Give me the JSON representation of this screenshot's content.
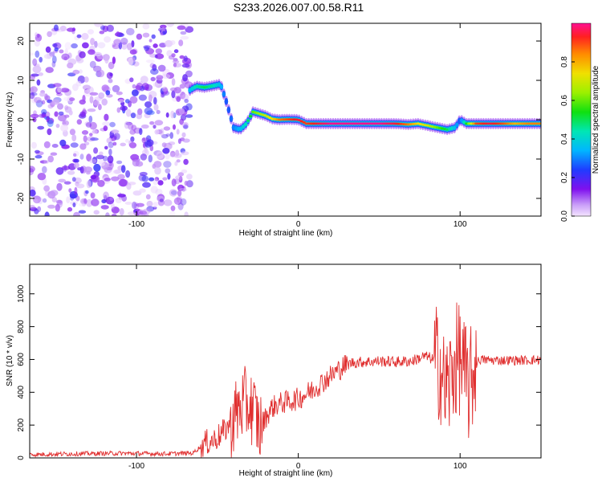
{
  "title": "S233.2026.007.00.58.R11",
  "colors": {
    "axis": "#000000",
    "trace": "#e03030",
    "background": "#ffffff"
  },
  "chart_data": [
    {
      "type": "heatmap",
      "xlabel": "Height of straight line (km)",
      "ylabel": "Frequency (Hz)",
      "xlim": [
        -166,
        150
      ],
      "ylim": [
        -24.5,
        24.5
      ],
      "xticks": [
        -100,
        0,
        100
      ],
      "yticks": [
        -20,
        -10,
        0,
        10,
        20
      ],
      "grid": false,
      "colorbar": {
        "label": "Normalized spectral amplitude",
        "range": [
          0,
          1
        ],
        "ticks": [
          "0.0",
          "0.2",
          "0.4",
          "0.6",
          "0.8"
        ]
      },
      "noise_region": {
        "x": [
          -166,
          -67
        ],
        "y": [
          -24.5,
          24.5
        ],
        "level": 0.15
      },
      "ridge": [
        {
          "x": -67,
          "y": 7.5,
          "level": 0.35
        },
        {
          "x": -63,
          "y": 8.5,
          "level": 0.45
        },
        {
          "x": -58,
          "y": 8.2,
          "level": 0.5
        },
        {
          "x": -53,
          "y": 8.6,
          "level": 0.45
        },
        {
          "x": -48,
          "y": 9.0,
          "level": 0.35
        },
        {
          "x": -44,
          "y": 4.0,
          "level": 0.25
        },
        {
          "x": -40,
          "y": -2.0,
          "level": 0.3
        },
        {
          "x": -36,
          "y": -2.5,
          "level": 0.35
        },
        {
          "x": -32,
          "y": -1.0,
          "level": 0.45
        },
        {
          "x": -28,
          "y": 2.0,
          "level": 0.6
        },
        {
          "x": -24,
          "y": 1.5,
          "level": 0.65
        },
        {
          "x": -20,
          "y": 1.0,
          "level": 0.7
        },
        {
          "x": -16,
          "y": 0.2,
          "level": 0.75
        },
        {
          "x": -12,
          "y": 0.0,
          "level": 0.85
        },
        {
          "x": -6,
          "y": 0.1,
          "level": 0.9
        },
        {
          "x": 0,
          "y": 0.0,
          "level": 0.95
        },
        {
          "x": 5,
          "y": -1.0,
          "level": 0.9
        },
        {
          "x": 12,
          "y": -1.0,
          "level": 0.95
        },
        {
          "x": 20,
          "y": -1.0,
          "level": 1.0
        },
        {
          "x": 30,
          "y": -1.0,
          "level": 1.0
        },
        {
          "x": 40,
          "y": -1.0,
          "level": 1.0
        },
        {
          "x": 50,
          "y": -1.0,
          "level": 1.0
        },
        {
          "x": 60,
          "y": -1.0,
          "level": 0.95
        },
        {
          "x": 68,
          "y": -1.2,
          "level": 0.85
        },
        {
          "x": 74,
          "y": -1.0,
          "level": 0.75
        },
        {
          "x": 80,
          "y": -1.5,
          "level": 0.7
        },
        {
          "x": 86,
          "y": -2.0,
          "level": 0.6
        },
        {
          "x": 92,
          "y": -2.5,
          "level": 0.5
        },
        {
          "x": 97,
          "y": -2.0,
          "level": 0.35
        },
        {
          "x": 100,
          "y": 0.0,
          "level": 0.25
        },
        {
          "x": 104,
          "y": -1.0,
          "level": 0.55
        },
        {
          "x": 110,
          "y": -1.0,
          "level": 0.9
        },
        {
          "x": 118,
          "y": -1.0,
          "level": 0.95
        },
        {
          "x": 126,
          "y": -1.0,
          "level": 0.9
        },
        {
          "x": 134,
          "y": -1.0,
          "level": 0.8
        },
        {
          "x": 142,
          "y": -1.0,
          "level": 0.85
        },
        {
          "x": 150,
          "y": -1.0,
          "level": 0.85
        }
      ]
    },
    {
      "type": "line",
      "xlabel": "Height of straight line (km)",
      "ylabel": "SNR (10 * v/v)",
      "xlim": [
        -166,
        150
      ],
      "ylim": [
        0,
        1180
      ],
      "xticks": [
        -100,
        0,
        100
      ],
      "yticks": [
        0,
        200,
        400,
        600,
        800,
        1000
      ],
      "grid": false,
      "series": [
        {
          "color": "#e03030",
          "points": [
            {
              "x": -166,
              "y": 20
            },
            {
              "x": -140,
              "y": 25
            },
            {
              "x": -110,
              "y": 28
            },
            {
              "x": -80,
              "y": 25
            },
            {
              "x": -65,
              "y": 30
            },
            {
              "x": -58,
              "y": 90
            },
            {
              "x": -52,
              "y": 110
            },
            {
              "x": -46,
              "y": 160
            },
            {
              "x": -40,
              "y": 240
            },
            {
              "x": -36,
              "y": 310
            },
            {
              "x": -33,
              "y": 330
            },
            {
              "x": -30,
              "y": 320
            },
            {
              "x": -27,
              "y": 280
            },
            {
              "x": -24,
              "y": 180
            },
            {
              "x": -20,
              "y": 250
            },
            {
              "x": -16,
              "y": 310
            },
            {
              "x": -12,
              "y": 330
            },
            {
              "x": -8,
              "y": 340
            },
            {
              "x": -4,
              "y": 350
            },
            {
              "x": 0,
              "y": 360
            },
            {
              "x": 4,
              "y": 385
            },
            {
              "x": 8,
              "y": 410
            },
            {
              "x": 12,
              "y": 440
            },
            {
              "x": 16,
              "y": 470
            },
            {
              "x": 20,
              "y": 500
            },
            {
              "x": 24,
              "y": 530
            },
            {
              "x": 28,
              "y": 560
            },
            {
              "x": 33,
              "y": 580
            },
            {
              "x": 40,
              "y": 585
            },
            {
              "x": 50,
              "y": 590
            },
            {
              "x": 60,
              "y": 585
            },
            {
              "x": 70,
              "y": 590
            },
            {
              "x": 78,
              "y": 620
            },
            {
              "x": 84,
              "y": 600
            },
            {
              "x": 88,
              "y": 560
            },
            {
              "x": 90,
              "y": 420
            },
            {
              "x": 93,
              "y": 430
            },
            {
              "x": 96,
              "y": 560
            },
            {
              "x": 100,
              "y": 620
            },
            {
              "x": 103,
              "y": 480
            },
            {
              "x": 106,
              "y": 420
            },
            {
              "x": 109,
              "y": 560
            },
            {
              "x": 112,
              "y": 600
            },
            {
              "x": 120,
              "y": 595
            },
            {
              "x": 130,
              "y": 595
            },
            {
              "x": 140,
              "y": 595
            },
            {
              "x": 150,
              "y": 598
            }
          ]
        }
      ]
    }
  ]
}
